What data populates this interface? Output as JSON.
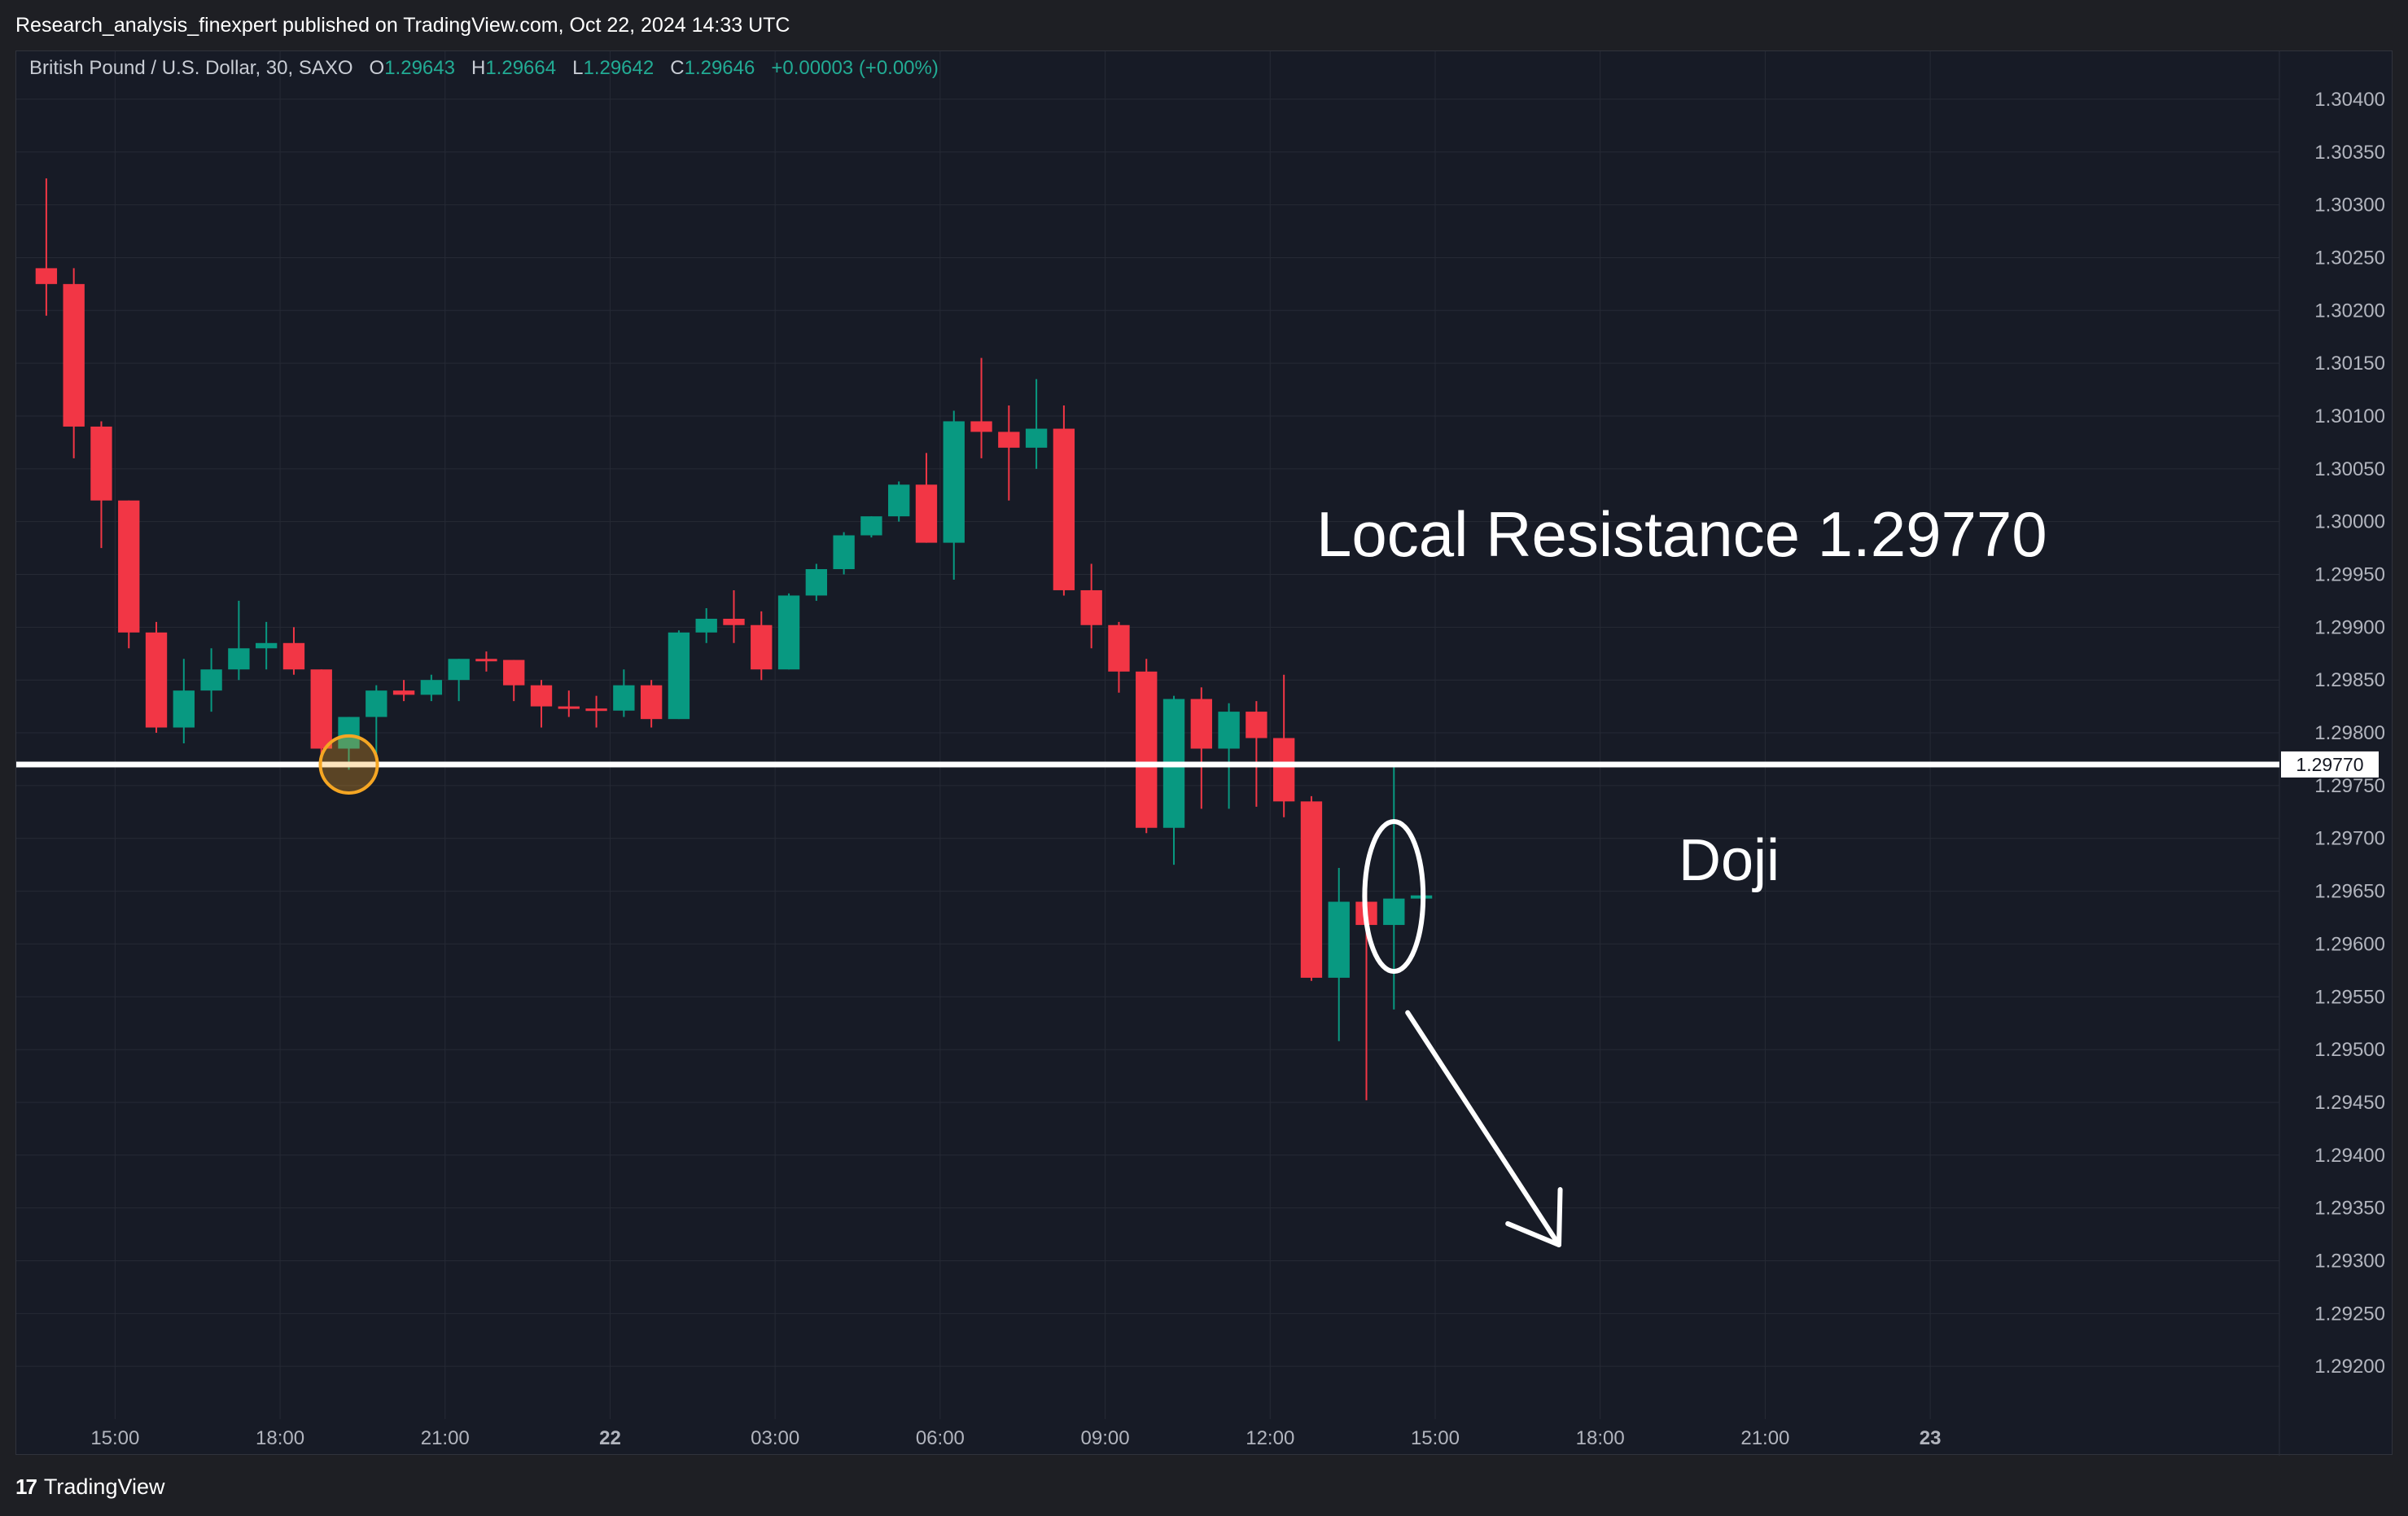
{
  "header": {
    "publish_line": "Research_analysis_finexpert published on TradingView.com, Oct 22, 2024 14:33 UTC"
  },
  "legend": {
    "symbol": "British Pound / U.S. Dollar, 30, SAXO",
    "o_label": "O",
    "o_value": "1.29643",
    "h_label": "H",
    "h_value": "1.29664",
    "l_label": "L",
    "l_value": "1.29642",
    "c_label": "C",
    "c_value": "1.29646",
    "change": "+0.00003 (+0.00%)"
  },
  "footer": {
    "brand_mark": "17",
    "brand": "TradingView"
  },
  "colors": {
    "up": "#089981",
    "down": "#f23645",
    "grid": "#262a35",
    "text": "#b2b5be",
    "annotation": "#ffffff",
    "circle_highlight": "#f5a623"
  },
  "chart_data": {
    "type": "candlestick",
    "symbol": "GBPUSD",
    "timeframe": "30",
    "ylim": [
      1.2915,
      1.3043
    ],
    "y_ticks": [
      "1.30400",
      "1.30350",
      "1.30300",
      "1.30250",
      "1.30200",
      "1.30150",
      "1.30100",
      "1.30050",
      "1.30000",
      "1.29950",
      "1.29900",
      "1.29850",
      "1.29800",
      "1.29750",
      "1.29700",
      "1.29650",
      "1.29600",
      "1.29550",
      "1.29500",
      "1.29450",
      "1.29400",
      "1.29350",
      "1.29300",
      "1.29250",
      "1.29200"
    ],
    "x_ticks": [
      {
        "label": "15:00",
        "t": "2024-10-21T15:00",
        "bold": false
      },
      {
        "label": "18:00",
        "t": "2024-10-21T18:00",
        "bold": false
      },
      {
        "label": "21:00",
        "t": "2024-10-21T21:00",
        "bold": false
      },
      {
        "label": "22",
        "t": "2024-10-22T00:00",
        "bold": true
      },
      {
        "label": "03:00",
        "t": "2024-10-22T03:00",
        "bold": false
      },
      {
        "label": "06:00",
        "t": "2024-10-22T06:00",
        "bold": false
      },
      {
        "label": "09:00",
        "t": "2024-10-22T09:00",
        "bold": false
      },
      {
        "label": "12:00",
        "t": "2024-10-22T12:00",
        "bold": false
      },
      {
        "label": "15:00",
        "t": "2024-10-22T15:00",
        "bold": false
      },
      {
        "label": "18:00",
        "t": "2024-10-22T18:00",
        "bold": false
      },
      {
        "label": "21:00",
        "t": "2024-10-22T21:00",
        "bold": false
      },
      {
        "label": "23",
        "t": "2024-10-23T00:00",
        "bold": true
      }
    ],
    "x_range": [
      "2024-10-21T13:30",
      "2024-10-23T02:30"
    ],
    "candles": [
      {
        "t": "2024-10-21T13:30",
        "o": 1.3024,
        "h": 1.30325,
        "l": 1.30195,
        "c": 1.30225
      },
      {
        "t": "2024-10-21T14:00",
        "o": 1.30225,
        "h": 1.3024,
        "l": 1.3006,
        "c": 1.3009
      },
      {
        "t": "2024-10-21T14:30",
        "o": 1.3009,
        "h": 1.30095,
        "l": 1.29975,
        "c": 1.3002
      },
      {
        "t": "2024-10-21T15:00",
        "o": 1.3002,
        "h": 1.3002,
        "l": 1.2988,
        "c": 1.29895
      },
      {
        "t": "2024-10-21T15:30",
        "o": 1.29895,
        "h": 1.29905,
        "l": 1.298,
        "c": 1.29805
      },
      {
        "t": "2024-10-21T16:00",
        "o": 1.29805,
        "h": 1.2987,
        "l": 1.2979,
        "c": 1.2984
      },
      {
        "t": "2024-10-21T16:30",
        "o": 1.2984,
        "h": 1.2988,
        "l": 1.2982,
        "c": 1.2986
      },
      {
        "t": "2024-10-21T17:00",
        "o": 1.2986,
        "h": 1.29925,
        "l": 1.2985,
        "c": 1.2988
      },
      {
        "t": "2024-10-21T17:30",
        "o": 1.2988,
        "h": 1.29905,
        "l": 1.2986,
        "c": 1.29885
      },
      {
        "t": "2024-10-21T18:00",
        "o": 1.29885,
        "h": 1.299,
        "l": 1.29855,
        "c": 1.2986
      },
      {
        "t": "2024-10-21T18:30",
        "o": 1.2986,
        "h": 1.2986,
        "l": 1.2977,
        "c": 1.29785
      },
      {
        "t": "2024-10-21T19:00",
        "o": 1.29785,
        "h": 1.29815,
        "l": 1.29765,
        "c": 1.29815
      },
      {
        "t": "2024-10-21T19:30",
        "o": 1.29815,
        "h": 1.29845,
        "l": 1.2978,
        "c": 1.2984
      },
      {
        "t": "2024-10-21T20:00",
        "o": 1.2984,
        "h": 1.2985,
        "l": 1.2983,
        "c": 1.29836
      },
      {
        "t": "2024-10-21T20:30",
        "o": 1.29836,
        "h": 1.29855,
        "l": 1.2983,
        "c": 1.2985
      },
      {
        "t": "2024-10-21T21:00",
        "o": 1.2985,
        "h": 1.2987,
        "l": 1.2983,
        "c": 1.2987
      },
      {
        "t": "2024-10-21T21:30",
        "o": 1.2987,
        "h": 1.29877,
        "l": 1.29858,
        "c": 1.29869
      },
      {
        "t": "2024-10-21T22:00",
        "o": 1.29869,
        "h": 1.29869,
        "l": 1.2983,
        "c": 1.29845
      },
      {
        "t": "2024-10-21T22:30",
        "o": 1.29845,
        "h": 1.2985,
        "l": 1.29805,
        "c": 1.29825
      },
      {
        "t": "2024-10-21T23:00",
        "o": 1.29825,
        "h": 1.2984,
        "l": 1.29815,
        "c": 1.29823
      },
      {
        "t": "2024-10-21T23:30",
        "o": 1.29823,
        "h": 1.29835,
        "l": 1.29805,
        "c": 1.29821
      },
      {
        "t": "2024-10-22T00:00",
        "o": 1.29821,
        "h": 1.2986,
        "l": 1.29815,
        "c": 1.29845
      },
      {
        "t": "2024-10-22T00:30",
        "o": 1.29845,
        "h": 1.2985,
        "l": 1.29805,
        "c": 1.29813
      },
      {
        "t": "2024-10-22T01:00",
        "o": 1.29813,
        "h": 1.29897,
        "l": 1.29813,
        "c": 1.29895
      },
      {
        "t": "2024-10-22T01:30",
        "o": 1.29895,
        "h": 1.29918,
        "l": 1.29885,
        "c": 1.29908
      },
      {
        "t": "2024-10-22T02:00",
        "o": 1.29908,
        "h": 1.29935,
        "l": 1.29885,
        "c": 1.29902
      },
      {
        "t": "2024-10-22T02:30",
        "o": 1.29902,
        "h": 1.29915,
        "l": 1.2985,
        "c": 1.2986
      },
      {
        "t": "2024-10-22T03:00",
        "o": 1.2986,
        "h": 1.29932,
        "l": 1.2986,
        "c": 1.2993
      },
      {
        "t": "2024-10-22T03:30",
        "o": 1.2993,
        "h": 1.2996,
        "l": 1.29925,
        "c": 1.29955
      },
      {
        "t": "2024-10-22T04:00",
        "o": 1.29955,
        "h": 1.2999,
        "l": 1.2995,
        "c": 1.29987
      },
      {
        "t": "2024-10-22T04:30",
        "o": 1.29987,
        "h": 1.30005,
        "l": 1.29985,
        "c": 1.30005
      },
      {
        "t": "2024-10-22T05:00",
        "o": 1.30005,
        "h": 1.30038,
        "l": 1.3,
        "c": 1.30035
      },
      {
        "t": "2024-10-22T05:30",
        "o": 1.30035,
        "h": 1.30065,
        "l": 1.2998,
        "c": 1.2998
      },
      {
        "t": "2024-10-22T06:00",
        "o": 1.2998,
        "h": 1.30105,
        "l": 1.29945,
        "c": 1.30095
      },
      {
        "t": "2024-10-22T06:30",
        "o": 1.30095,
        "h": 1.30155,
        "l": 1.3006,
        "c": 1.30085
      },
      {
        "t": "2024-10-22T07:00",
        "o": 1.30085,
        "h": 1.3011,
        "l": 1.3002,
        "c": 1.3007
      },
      {
        "t": "2024-10-22T07:30",
        "o": 1.3007,
        "h": 1.30135,
        "l": 1.3005,
        "c": 1.30088
      },
      {
        "t": "2024-10-22T08:00",
        "o": 1.30088,
        "h": 1.3011,
        "l": 1.2993,
        "c": 1.29935
      },
      {
        "t": "2024-10-22T08:30",
        "o": 1.29935,
        "h": 1.2996,
        "l": 1.2988,
        "c": 1.29902
      },
      {
        "t": "2024-10-22T09:00",
        "o": 1.29902,
        "h": 1.29905,
        "l": 1.29838,
        "c": 1.29858
      },
      {
        "t": "2024-10-22T09:30",
        "o": 1.29858,
        "h": 1.2987,
        "l": 1.29705,
        "c": 1.2971
      },
      {
        "t": "2024-10-22T10:00",
        "o": 1.2971,
        "h": 1.29835,
        "l": 1.29675,
        "c": 1.29832
      },
      {
        "t": "2024-10-22T10:30",
        "o": 1.29832,
        "h": 1.29843,
        "l": 1.29728,
        "c": 1.29785
      },
      {
        "t": "2024-10-22T11:00",
        "o": 1.29785,
        "h": 1.29828,
        "l": 1.29728,
        "c": 1.2982
      },
      {
        "t": "2024-10-22T11:30",
        "o": 1.2982,
        "h": 1.2983,
        "l": 1.2973,
        "c": 1.29795
      },
      {
        "t": "2024-10-22T12:00",
        "o": 1.29795,
        "h": 1.29855,
        "l": 1.2972,
        "c": 1.29735
      },
      {
        "t": "2024-10-22T12:30",
        "o": 1.29735,
        "h": 1.2974,
        "l": 1.29565,
        "c": 1.29568
      },
      {
        "t": "2024-10-22T13:00",
        "o": 1.29568,
        "h": 1.29672,
        "l": 1.29508,
        "c": 1.2964
      },
      {
        "t": "2024-10-22T13:30",
        "o": 1.2964,
        "h": 1.29665,
        "l": 1.29452,
        "c": 1.29618
      },
      {
        "t": "2024-10-22T14:00",
        "o": 1.29618,
        "h": 1.2977,
        "l": 1.29538,
        "c": 1.29643
      },
      {
        "t": "2024-10-22T14:30",
        "o": 1.29643,
        "h": 1.29664,
        "l": 1.29642,
        "c": 1.29646
      }
    ],
    "resistance": {
      "price": 1.2977,
      "label": "1.29770"
    },
    "annotations": {
      "resistance_text": "Local Resistance 1.29770",
      "doji_text": "Doji"
    },
    "highlight_circle": {
      "t": "2024-10-21T19:00",
      "price": 1.2977,
      "radius_price": 0.00027
    },
    "doji_ellipse": {
      "t": "2024-10-22T14:00",
      "price": 1.29645,
      "radius_price": 0.00071
    },
    "arrow": {
      "from": {
        "t": "2024-10-22T14:30",
        "price": 1.29535
      },
      "to": {
        "t": "2024-10-22T17:15",
        "price": 1.29315
      }
    }
  }
}
